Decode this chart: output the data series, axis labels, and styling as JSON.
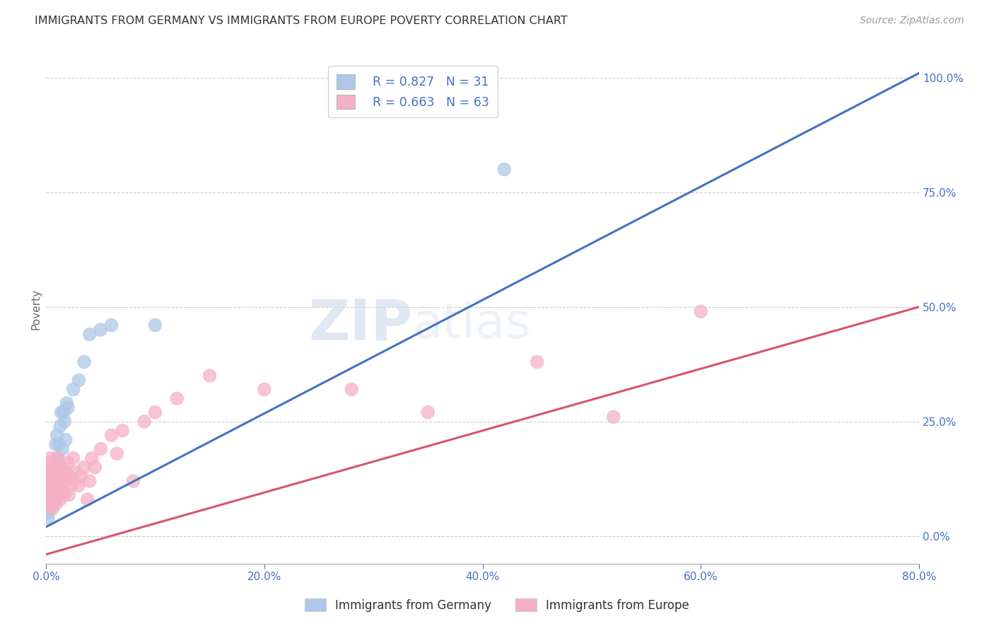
{
  "title": "IMMIGRANTS FROM GERMANY VS IMMIGRANTS FROM EUROPE POVERTY CORRELATION CHART",
  "source": "Source: ZipAtlas.com",
  "ylabel": "Poverty",
  "xlabel_ticks": [
    "0.0%",
    "20.0%",
    "40.0%",
    "60.0%",
    "80.0%"
  ],
  "xlabel_tick_vals": [
    0.0,
    0.2,
    0.4,
    0.6,
    0.8
  ],
  "ylabel_ticks": [
    "0.0%",
    "25.0%",
    "50.0%",
    "75.0%",
    "100.0%"
  ],
  "ylabel_tick_vals": [
    0.0,
    0.25,
    0.5,
    0.75,
    1.0
  ],
  "xlim": [
    0.0,
    0.8
  ],
  "ylim": [
    -0.06,
    1.05
  ],
  "blue_R": 0.827,
  "blue_N": 31,
  "pink_R": 0.663,
  "pink_N": 63,
  "blue_color": "#adc8e8",
  "pink_color": "#f5b0c5",
  "blue_line_color": "#4472C4",
  "pink_line_color": "#d9546e",
  "watermark_zip": "ZIP",
  "watermark_atlas": "atlas",
  "blue_scatter_x": [
    0.001,
    0.002,
    0.003,
    0.004,
    0.005,
    0.005,
    0.006,
    0.006,
    0.007,
    0.008,
    0.009,
    0.009,
    0.01,
    0.011,
    0.012,
    0.013,
    0.014,
    0.015,
    0.016,
    0.017,
    0.018,
    0.019,
    0.02,
    0.025,
    0.03,
    0.035,
    0.04,
    0.05,
    0.06,
    0.1,
    0.42
  ],
  "blue_scatter_y": [
    0.05,
    0.04,
    0.06,
    0.08,
    0.07,
    0.12,
    0.09,
    0.14,
    0.1,
    0.13,
    0.16,
    0.2,
    0.22,
    0.17,
    0.2,
    0.24,
    0.27,
    0.19,
    0.27,
    0.25,
    0.21,
    0.29,
    0.28,
    0.32,
    0.34,
    0.38,
    0.44,
    0.45,
    0.46,
    0.46,
    0.8
  ],
  "pink_scatter_x": [
    0.001,
    0.002,
    0.002,
    0.003,
    0.003,
    0.004,
    0.004,
    0.004,
    0.005,
    0.005,
    0.006,
    0.006,
    0.006,
    0.007,
    0.007,
    0.007,
    0.008,
    0.008,
    0.009,
    0.009,
    0.01,
    0.01,
    0.011,
    0.011,
    0.012,
    0.012,
    0.013,
    0.013,
    0.014,
    0.015,
    0.015,
    0.016,
    0.017,
    0.018,
    0.019,
    0.02,
    0.021,
    0.022,
    0.023,
    0.025,
    0.027,
    0.03,
    0.032,
    0.035,
    0.038,
    0.04,
    0.042,
    0.045,
    0.05,
    0.06,
    0.065,
    0.07,
    0.08,
    0.09,
    0.1,
    0.12,
    0.15,
    0.2,
    0.28,
    0.35,
    0.45,
    0.52,
    0.6
  ],
  "pink_scatter_y": [
    0.12,
    0.1,
    0.16,
    0.08,
    0.14,
    0.09,
    0.13,
    0.17,
    0.07,
    0.15,
    0.06,
    0.1,
    0.13,
    0.08,
    0.11,
    0.16,
    0.09,
    0.14,
    0.07,
    0.12,
    0.08,
    0.13,
    0.1,
    0.17,
    0.09,
    0.14,
    0.08,
    0.13,
    0.11,
    0.1,
    0.15,
    0.13,
    0.09,
    0.14,
    0.12,
    0.16,
    0.09,
    0.13,
    0.11,
    0.17,
    0.14,
    0.11,
    0.13,
    0.15,
    0.08,
    0.12,
    0.17,
    0.15,
    0.19,
    0.22,
    0.18,
    0.23,
    0.12,
    0.25,
    0.27,
    0.3,
    0.35,
    0.32,
    0.32,
    0.27,
    0.38,
    0.26,
    0.49
  ],
  "blue_line_x": [
    0.0,
    0.8
  ],
  "blue_line_y": [
    0.02,
    1.01
  ],
  "pink_line_x": [
    0.0,
    0.8
  ],
  "pink_line_y": [
    -0.04,
    0.5
  ],
  "background_color": "#ffffff",
  "grid_color": "#cccccc",
  "tick_color": "#4472C4",
  "title_color": "#333333",
  "axis_color": "#aaaaaa",
  "legend_label_blue": "  R = 0.827   N = 31",
  "legend_label_pink": "  R = 0.663   N = 63",
  "bottom_legend_blue": "Immigrants from Germany",
  "bottom_legend_pink": "Immigrants from Europe"
}
